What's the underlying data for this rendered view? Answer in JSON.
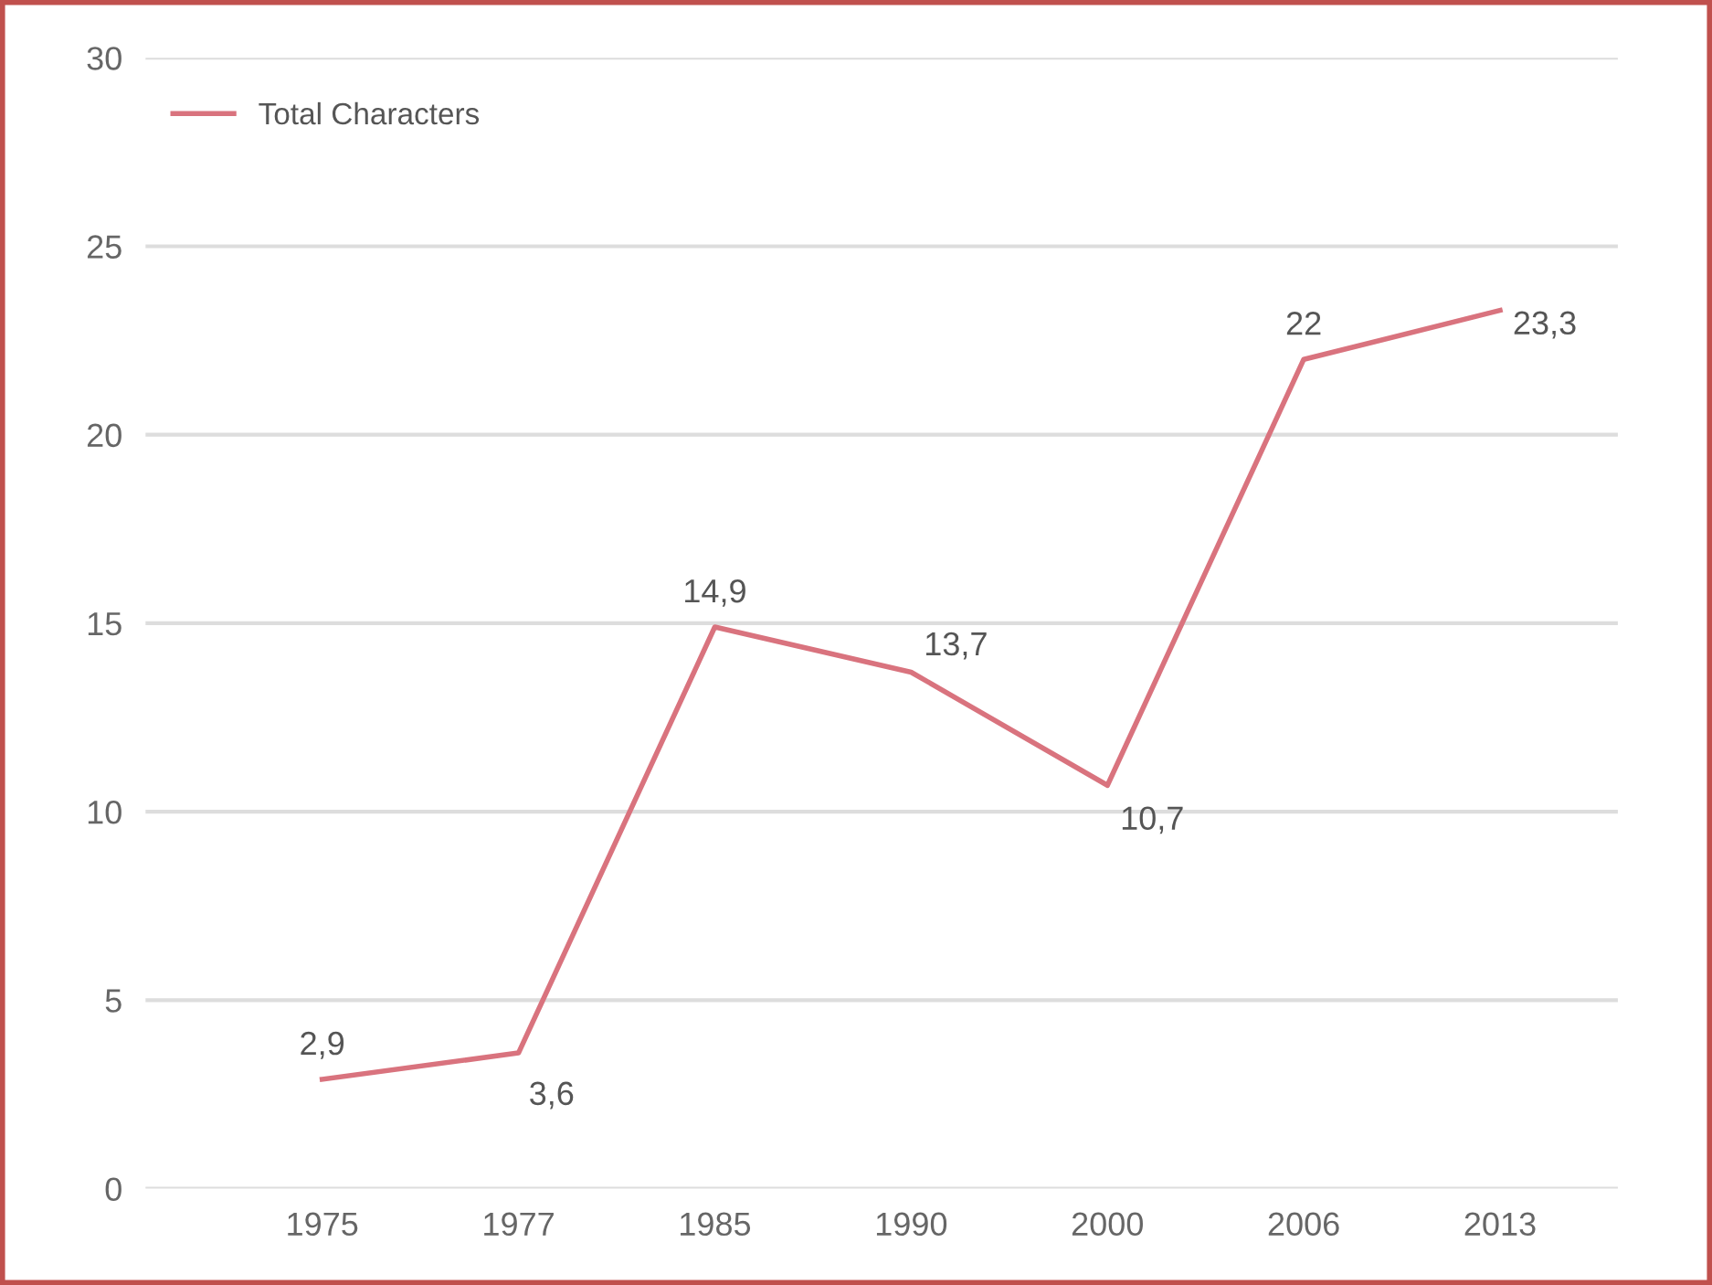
{
  "chart_data": {
    "type": "line",
    "categories": [
      "1975",
      "1977",
      "1985",
      "1990",
      "2000",
      "2006",
      "2013"
    ],
    "series": [
      {
        "name": "Total Characters",
        "color": "#d9737e",
        "values": [
          2.9,
          3.6,
          14.9,
          13.7,
          10.7,
          22,
          23.3
        ],
        "value_labels": [
          "2,9",
          "3,6",
          "14,9",
          "13,7",
          "10,7",
          "22",
          "23,3"
        ]
      }
    ],
    "ylim": [
      0,
      30
    ],
    "yticks": [
      0,
      5,
      10,
      15,
      20,
      25,
      30
    ],
    "grid": "y",
    "legend": "top left",
    "marker": "none",
    "line_style": "solid"
  }
}
